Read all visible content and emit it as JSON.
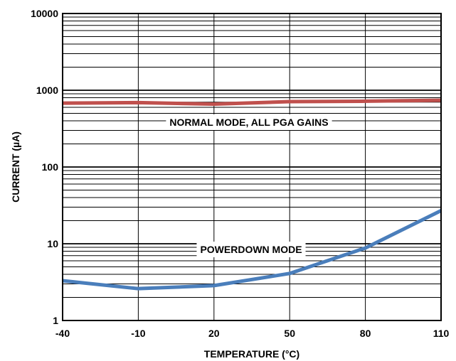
{
  "chart_data": {
    "type": "line",
    "title": "",
    "xlabel": "TEMPERATURE (°C)",
    "ylabel": "CURRENT (µA)",
    "x": [
      -40,
      -10,
      20,
      50,
      80,
      110
    ],
    "x_tick_labels": [
      "-40",
      "-10",
      "20",
      "50",
      "80",
      "110"
    ],
    "y_scale": "log",
    "ylim": [
      1,
      10000
    ],
    "y_tick_values": [
      1,
      10,
      100,
      1000,
      10000
    ],
    "y_tick_labels": [
      "1",
      "10",
      "100",
      "1000",
      "10000"
    ],
    "xlim": [
      -40,
      110
    ],
    "grid": true,
    "series": [
      {
        "id": "normal",
        "values": [
          680,
          690,
          660,
          710,
          720,
          740
        ],
        "color": "#c0504d"
      },
      {
        "id": "powerdown",
        "values": [
          3.3,
          2.6,
          2.85,
          4.1,
          8.8,
          27
        ],
        "color": "#4a7ebb"
      }
    ],
    "annotations": [
      {
        "series": "normal",
        "text": "NORMAL MODE, ALL PGA GAINS"
      },
      {
        "series": "powerdown",
        "text": "POWERDOWN MODE"
      }
    ]
  }
}
